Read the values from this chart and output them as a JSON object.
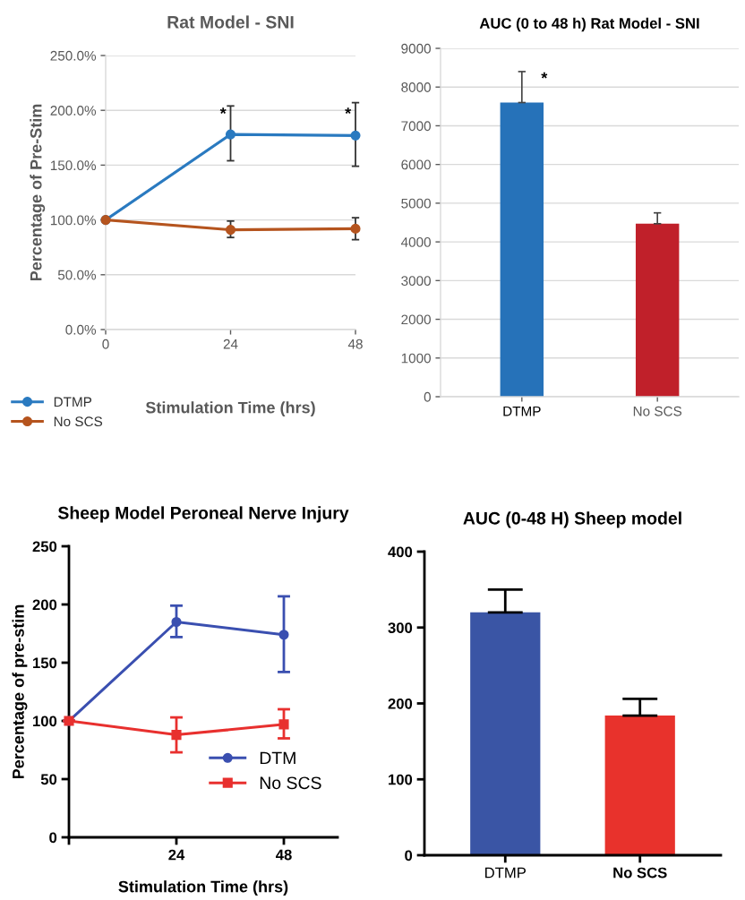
{
  "chart_data": [
    {
      "type": "line",
      "title": "Rat Model - SNI",
      "xlabel": "Stimulation Time (hrs)",
      "ylabel": "Percentage of Pre-Stim",
      "x": [
        0,
        24,
        48
      ],
      "xlim": [
        0,
        48
      ],
      "xticks": [
        0,
        24,
        48
      ],
      "ylim": [
        0,
        250
      ],
      "yticks": [
        {
          "value": 0,
          "label": "0.0%"
        },
        {
          "value": 50,
          "label": "50.0%"
        },
        {
          "value": 100,
          "label": "100.0%"
        },
        {
          "value": 150,
          "label": "150.0%"
        },
        {
          "value": 200,
          "label": "200.0%"
        },
        {
          "value": 250,
          "label": "250.0%"
        }
      ],
      "grid": "y",
      "legend": "bottom left",
      "marker": "circle",
      "series": [
        {
          "name": "DTMP",
          "color": "#2a7ac0",
          "values": [
            100,
            178,
            177
          ],
          "errors": [
            null,
            [
              154,
              204
            ],
            [
              149,
              207
            ]
          ]
        },
        {
          "name": "No SCS",
          "color": "#b5541e",
          "values": [
            100,
            91,
            92
          ],
          "errors": [
            null,
            [
              84,
              99
            ],
            [
              82,
              102
            ]
          ]
        }
      ],
      "annotations": [
        {
          "text": "*",
          "x": 24,
          "y": 196
        },
        {
          "text": "*",
          "x": 48,
          "y": 196
        }
      ]
    },
    {
      "type": "bar",
      "title": "AUC (0 to 48 h) Rat Model - SNI",
      "categories": [
        "DTMP",
        "No SCS"
      ],
      "values": [
        7600,
        4470
      ],
      "colors": [
        "#2672b9",
        "#c0202a"
      ],
      "errors": [
        [
          7600,
          8400
        ],
        [
          4470,
          4750
        ]
      ],
      "ylim": [
        0,
        9000
      ],
      "yticks": [
        0,
        1000,
        2000,
        3000,
        4000,
        5000,
        6000,
        7000,
        8000,
        9000
      ],
      "grid": "y",
      "annotations": [
        {
          "text": "*",
          "x": "DTMP",
          "y": 8200
        }
      ]
    },
    {
      "type": "line",
      "title": "Sheep Model Peroneal Nerve Injury",
      "xlabel": "Stimulation Time (hrs)",
      "ylabel": "Percentage of pre-stim",
      "xlim": [
        0,
        60
      ],
      "xticks": [
        {
          "value": 0,
          "label": null
        },
        24,
        48
      ],
      "ylim": [
        0,
        250
      ],
      "yticks": [
        0,
        50,
        100,
        150,
        200,
        250
      ],
      "legend": "bottom right",
      "series": [
        {
          "name": "DTM",
          "color": "#3a4fb0",
          "marker": "circle",
          "x": [
            0,
            24,
            48
          ],
          "values": [
            100,
            185,
            174
          ],
          "errors": [
            null,
            [
              172,
              199
            ],
            [
              142,
              207
            ]
          ]
        },
        {
          "name": "No SCS",
          "color": "#e8302e",
          "marker": "square",
          "x": [
            0,
            24,
            48
          ],
          "values": [
            100,
            88,
            97
          ],
          "errors": [
            null,
            [
              73,
              103
            ],
            [
              85,
              110
            ]
          ]
        }
      ]
    },
    {
      "type": "bar",
      "title": "AUC (0-48 H) Sheep model",
      "categories": [
        "DTMP",
        "No SCS"
      ],
      "values": [
        320,
        184
      ],
      "colors": [
        "#3a55a5",
        "#e8322c"
      ],
      "errors": [
        [
          320,
          350
        ],
        [
          184,
          206
        ]
      ],
      "ylim": [
        0,
        400
      ],
      "yticks": [
        0,
        100,
        200,
        300,
        400
      ]
    }
  ]
}
